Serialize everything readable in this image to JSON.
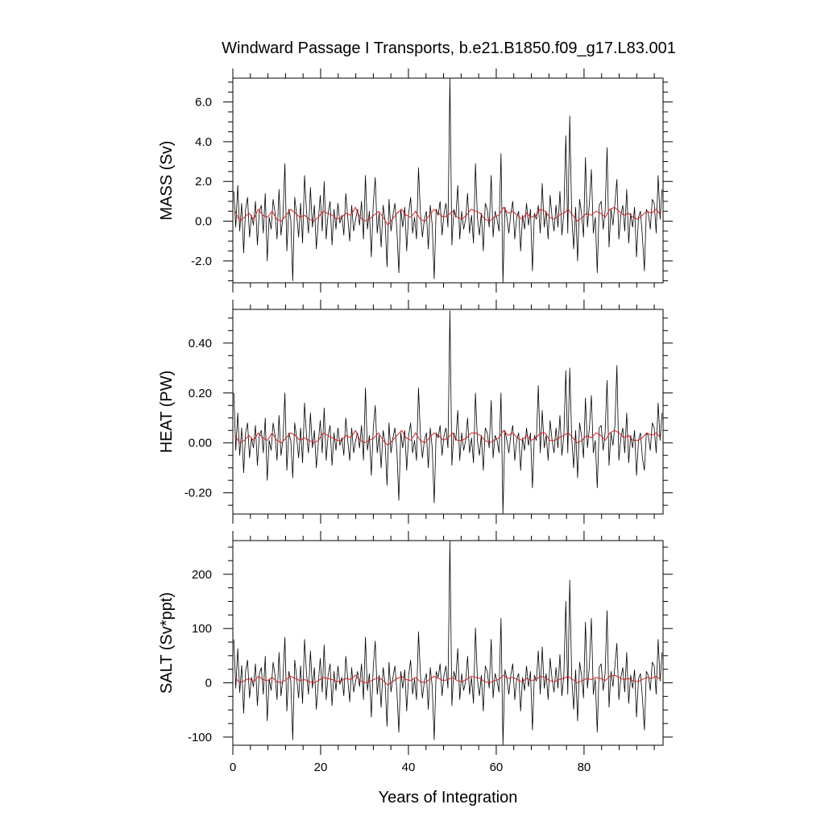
{
  "figure": {
    "title": "Windward Passage I Transports, b.e21.B1850.f09_g17.L83.001",
    "xlabel": "Years of Integration"
  },
  "chart_data": [
    {
      "type": "line",
      "ylabel": "MASS (Sv)",
      "xlim": [
        0,
        98
      ],
      "ylim": [
        -3.1,
        7.2
      ],
      "xticks": [
        0,
        20,
        40,
        60,
        80
      ],
      "yticks": [
        -2.0,
        0.0,
        2.0,
        4.0,
        6.0
      ],
      "ytick_labels": [
        "-2.0",
        "0.0",
        "2.0",
        "4.0",
        "6.0"
      ],
      "series": [
        {
          "role": "monthly",
          "color": "#000000",
          "values": [
            1.5,
            -0.3,
            1.8,
            -0.5,
            0.9,
            -1.6,
            0.6,
            1.2,
            -0.8,
            0.3,
            -0.2,
            1.0,
            -1.2,
            0.5,
            0.8,
            -0.6,
            1.4,
            -2.0,
            0.2,
            -0.4,
            1.1,
            0.4,
            -0.9,
            1.6,
            -0.7,
            0.2,
            2.9,
            -1.5,
            0.6,
            0.1,
            -3.0,
            1.2,
            0.3,
            -0.8,
            0.9,
            -1.1,
            2.3,
            0.5,
            -0.6,
            1.7,
            -0.3,
            0.8,
            -1.4,
            0.0,
            1.3,
            -0.5,
            2.0,
            -0.9,
            0.4,
            1.0,
            -1.2,
            0.6,
            -0.4,
            0.9,
            -0.1,
            0.3,
            -0.7,
            1.4,
            0.2,
            -1.0,
            0.8,
            -0.5,
            0.1,
            0.6,
            -0.2,
            1.0,
            -0.9,
            2.3,
            -0.4,
            0.5,
            -1.8,
            0.9,
            2.2,
            -0.6,
            0.4,
            -1.3,
            0.8,
            0.0,
            -2.3,
            1.1,
            -0.5,
            0.3,
            0.9,
            -0.4,
            -2.6,
            0.6,
            -0.3,
            0.7,
            -1.5,
            0.4,
            1.2,
            -0.6,
            0.2,
            -0.9,
            2.7,
            0.4,
            -0.8,
            0.1,
            0.5,
            -1.4,
            0.8,
            -0.2,
            -2.9,
            0.6,
            0.3,
            1.0,
            -0.7,
            0.4,
            0.9,
            -0.3,
            7.3,
            -1.2,
            0.6,
            0.2,
            1.8,
            -0.9,
            0.5,
            -0.4,
            0.1,
            1.4,
            -0.6,
            0.3,
            -1.1,
            2.9,
            0.2,
            -0.7,
            0.4,
            -1.5,
            0.9,
            0.6,
            -0.3,
            2.3,
            -0.8,
            0.5,
            0.1,
            -0.5,
            3.4,
            -3.1,
            0.7,
            0.2,
            -0.6,
            0.4,
            1.0,
            -0.9,
            0.2,
            0.5,
            -1.5,
            0.3,
            -0.4,
            0.9,
            -0.2,
            0.6,
            -2.5,
            0.4,
            0.1,
            0.8,
            -0.6,
            1.9,
            -0.3,
            0.5,
            -0.9,
            1.3,
            0.2,
            -0.5,
            0.8,
            -0.3,
            1.5,
            -0.7,
            0.4,
            4.3,
            -0.6,
            5.3,
            0.3,
            -1.4,
            0.7,
            -2.0,
            1.1,
            0.4,
            -0.8,
            3.2,
            -0.3,
            0.9,
            2.6,
            -0.6,
            0.2,
            -2.6,
            0.8,
            1.0,
            -0.4,
            0.5,
            3.7,
            -1.3,
            0.6,
            -0.2,
            0.9,
            2.1,
            -0.9,
            0.3,
            0.8,
            -0.5,
            1.6,
            -1.1,
            0.4,
            -0.3,
            0.7,
            -1.8,
            0.2,
            0.5,
            -0.8,
            -2.5,
            0.6,
            0.4,
            -0.4,
            1.1,
            0.9,
            -0.6,
            2.3,
            0.1,
            1.6
          ]
        },
        {
          "role": "smoothed",
          "color": "#d62020",
          "values": [
            0.5,
            0.0,
            0.2,
            0.4,
            0.1,
            0.6,
            0.3,
            0.2,
            0.5,
            0.1,
            0.0,
            0.3,
            0.6,
            0.4,
            0.2,
            0.3,
            0.1,
            0.0,
            0.2,
            0.5,
            0.4,
            0.3,
            0.1,
            0.2,
            0.4,
            0.3,
            0.7,
            0.2,
            0.0,
            0.1,
            0.3,
            0.5,
            0.2,
            -0.2,
            0.1,
            0.4,
            0.6,
            0.3,
            0.2,
            0.5,
            0.1,
            0.0,
            0.3,
            0.6,
            0.4,
            0.2,
            0.3,
            0.5,
            0.2,
            0.1,
            0.3,
            0.6,
            0.5,
            0.4,
            0.1,
            0.0,
            0.2,
            0.3,
            0.7,
            0.4,
            0.5,
            0.3,
            0.1,
            0.4,
            0.2,
            0.3,
            0.6,
            0.5,
            0.2,
            0.1,
            0.3,
            0.4,
            0.6,
            0.3,
            0.0,
            0.2,
            0.4,
            0.3,
            0.5,
            0.4,
            0.2,
            0.6,
            0.7,
            0.5,
            0.3,
            0.4,
            0.2,
            0.1,
            0.3,
            0.5,
            0.4,
            0.6,
            0.3
          ]
        }
      ]
    },
    {
      "type": "line",
      "ylabel": "HEAT (PW)",
      "xlim": [
        0,
        98
      ],
      "ylim": [
        -0.285,
        0.535
      ],
      "xticks": [
        0,
        20,
        40,
        60,
        80
      ],
      "yticks": [
        -0.2,
        0.0,
        0.2,
        0.4
      ],
      "ytick_labels": [
        "-0.20",
        "0.00",
        "0.20",
        "0.40"
      ],
      "series": [
        {
          "role": "monthly",
          "color": "#000000",
          "values": [
            0.2,
            -0.03,
            0.12,
            -0.05,
            0.06,
            -0.12,
            0.04,
            0.08,
            -0.06,
            0.02,
            -0.02,
            0.07,
            -0.09,
            0.03,
            0.05,
            -0.04,
            0.1,
            -0.15,
            0.01,
            -0.03,
            0.08,
            0.03,
            -0.07,
            0.11,
            -0.05,
            0.01,
            0.2,
            -0.11,
            0.04,
            0.01,
            -0.14,
            0.08,
            0.02,
            -0.06,
            0.06,
            -0.08,
            0.16,
            0.03,
            -0.04,
            0.12,
            -0.02,
            0.05,
            -0.1,
            0.0,
            0.09,
            -0.04,
            0.14,
            -0.07,
            0.03,
            0.07,
            -0.09,
            0.04,
            -0.03,
            0.06,
            -0.01,
            0.02,
            -0.05,
            0.1,
            0.01,
            -0.07,
            0.06,
            -0.04,
            0.01,
            0.04,
            -0.02,
            0.07,
            -0.07,
            0.22,
            -0.03,
            0.03,
            -0.13,
            0.06,
            0.15,
            -0.04,
            0.03,
            -0.1,
            0.05,
            0.0,
            -0.17,
            0.08,
            -0.04,
            0.02,
            0.06,
            -0.03,
            -0.23,
            0.04,
            -0.02,
            0.05,
            -0.11,
            0.03,
            0.08,
            -0.04,
            0.01,
            -0.07,
            0.22,
            0.03,
            -0.06,
            0.01,
            0.04,
            -0.1,
            0.06,
            -0.02,
            -0.24,
            0.04,
            0.02,
            0.07,
            -0.05,
            0.03,
            0.06,
            -0.02,
            0.53,
            -0.09,
            0.04,
            0.01,
            0.13,
            -0.07,
            0.04,
            -0.03,
            0.01,
            0.1,
            -0.04,
            0.02,
            -0.08,
            0.2,
            0.01,
            -0.05,
            0.03,
            -0.11,
            0.06,
            0.04,
            -0.02,
            0.17,
            -0.06,
            0.03,
            0.01,
            -0.04,
            0.2,
            -0.29,
            0.05,
            0.01,
            -0.04,
            0.03,
            0.07,
            -0.07,
            0.01,
            0.04,
            -0.11,
            0.02,
            -0.03,
            0.06,
            -0.01,
            0.04,
            -0.18,
            0.03,
            0.01,
            0.23,
            -0.04,
            0.13,
            -0.02,
            0.03,
            -0.07,
            0.09,
            0.01,
            -0.04,
            0.06,
            -0.02,
            0.11,
            -0.05,
            0.03,
            0.29,
            -0.04,
            0.3,
            0.02,
            -0.1,
            0.05,
            -0.14,
            0.08,
            0.03,
            -0.06,
            0.18,
            -0.02,
            0.06,
            0.19,
            -0.04,
            0.01,
            -0.18,
            0.06,
            0.07,
            -0.03,
            0.04,
            0.25,
            -0.09,
            0.04,
            -0.01,
            0.07,
            0.31,
            -0.07,
            0.02,
            0.06,
            -0.04,
            0.12,
            -0.08,
            0.03,
            -0.02,
            0.05,
            -0.13,
            0.01,
            0.04,
            -0.06,
            -0.11,
            0.04,
            0.03,
            -0.03,
            0.08,
            0.06,
            -0.04,
            0.16,
            0.01,
            0.12
          ]
        },
        {
          "role": "smoothed",
          "color": "#d62020",
          "values": [
            0.03,
            0.0,
            0.01,
            0.03,
            0.01,
            0.04,
            0.02,
            0.01,
            0.04,
            0.01,
            0.0,
            0.02,
            0.04,
            0.03,
            0.01,
            0.02,
            0.01,
            0.0,
            0.01,
            0.04,
            0.03,
            0.02,
            0.01,
            0.01,
            0.03,
            0.02,
            0.05,
            0.01,
            0.0,
            0.01,
            0.02,
            0.04,
            0.01,
            -0.01,
            0.01,
            0.03,
            0.05,
            0.02,
            0.01,
            0.04,
            0.01,
            0.0,
            0.02,
            0.04,
            0.03,
            0.01,
            0.02,
            0.04,
            0.01,
            0.01,
            0.02,
            0.04,
            0.04,
            0.03,
            0.01,
            0.0,
            0.01,
            0.02,
            0.05,
            0.03,
            0.04,
            0.02,
            0.01,
            0.03,
            0.01,
            0.02,
            0.04,
            0.04,
            0.01,
            0.01,
            0.02,
            0.03,
            0.04,
            0.02,
            0.0,
            0.01,
            0.03,
            0.02,
            0.04,
            0.03,
            0.01,
            0.04,
            0.05,
            0.04,
            0.02,
            0.03,
            0.01,
            0.01,
            0.02,
            0.04,
            0.03,
            0.04,
            0.02
          ]
        }
      ]
    },
    {
      "type": "line",
      "ylabel": "SALT (Sv*ppt)",
      "xlim": [
        0,
        98
      ],
      "ylim": [
        -115,
        262
      ],
      "xticks": [
        0,
        20,
        40,
        60,
        80
      ],
      "yticks": [
        -100,
        0,
        100,
        200
      ],
      "ytick_labels": [
        "-100",
        "0",
        "100",
        "200"
      ],
      "series": [
        {
          "role": "monthly",
          "color": "#000000",
          "values": [
            80,
            -10,
            63,
            -18,
            32,
            -56,
            21,
            42,
            -28,
            10,
            -7,
            35,
            -42,
            17,
            28,
            -21,
            49,
            -70,
            7,
            -14,
            38,
            14,
            -31,
            56,
            -24,
            7,
            84,
            -52,
            21,
            3,
            -105,
            42,
            10,
            -28,
            31,
            -38,
            80,
            17,
            -21,
            59,
            -10,
            28,
            -49,
            0,
            45,
            -17,
            70,
            -31,
            14,
            35,
            -42,
            21,
            -14,
            31,
            -3,
            10,
            -24,
            49,
            7,
            -35,
            28,
            -17,
            3,
            21,
            -7,
            35,
            -31,
            84,
            -14,
            17,
            -63,
            31,
            77,
            -21,
            14,
            -45,
            28,
            0,
            -80,
            38,
            -17,
            10,
            31,
            -14,
            -91,
            21,
            -10,
            24,
            -52,
            14,
            42,
            -21,
            7,
            -31,
            94,
            14,
            -28,
            3,
            17,
            -49,
            28,
            -7,
            -105,
            21,
            10,
            35,
            -24,
            14,
            31,
            -10,
            262,
            -42,
            21,
            7,
            63,
            -31,
            17,
            -14,
            3,
            49,
            -21,
            10,
            -38,
            101,
            7,
            -24,
            14,
            -52,
            31,
            21,
            -10,
            80,
            -28,
            17,
            3,
            -17,
            119,
            -115,
            24,
            7,
            -21,
            14,
            35,
            -31,
            7,
            17,
            -52,
            10,
            -14,
            31,
            -7,
            21,
            -87,
            14,
            3,
            59,
            -21,
            66,
            -10,
            17,
            -31,
            45,
            7,
            -17,
            28,
            -10,
            52,
            -24,
            14,
            150,
            -21,
            189,
            10,
            -49,
            24,
            -70,
            38,
            14,
            -28,
            112,
            -10,
            31,
            119,
            -21,
            7,
            -91,
            28,
            35,
            -14,
            17,
            133,
            -45,
            21,
            -7,
            31,
            73,
            -31,
            10,
            28,
            -17,
            56,
            -38,
            14,
            -10,
            24,
            -63,
            7,
            17,
            -28,
            -87,
            21,
            14,
            -14,
            38,
            31,
            -21,
            80,
            3,
            56
          ]
        },
        {
          "role": "smoothed",
          "color": "#d62020",
          "values": [
            10,
            0,
            4,
            8,
            2,
            12,
            6,
            4,
            10,
            2,
            0,
            6,
            12,
            8,
            4,
            6,
            2,
            0,
            4,
            10,
            8,
            6,
            2,
            4,
            8,
            6,
            14,
            4,
            0,
            2,
            6,
            10,
            4,
            -4,
            2,
            8,
            12,
            6,
            4,
            10,
            2,
            0,
            6,
            12,
            8,
            4,
            6,
            10,
            4,
            2,
            6,
            12,
            10,
            8,
            2,
            0,
            4,
            6,
            14,
            8,
            10,
            6,
            2,
            8,
            4,
            6,
            12,
            10,
            4,
            2,
            6,
            8,
            12,
            6,
            0,
            4,
            8,
            6,
            10,
            8,
            4,
            12,
            14,
            10,
            6,
            8,
            4,
            2,
            6,
            10,
            8,
            12,
            6
          ]
        }
      ]
    }
  ]
}
